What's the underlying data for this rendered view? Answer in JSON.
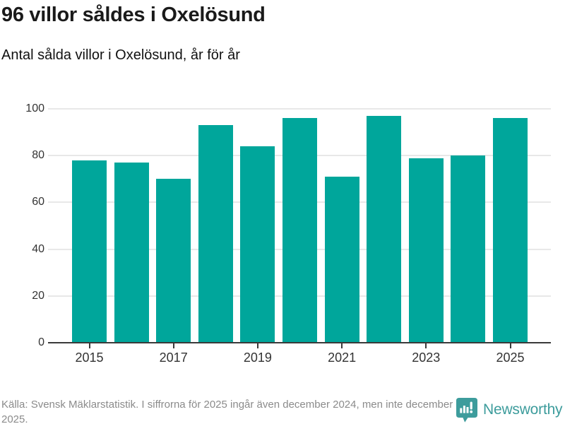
{
  "header": {
    "title": "96 villor såldes i Oxelösund",
    "subtitle": "Antal sålda villor i Oxelösund, år för år"
  },
  "chart_data": {
    "type": "bar",
    "title": "96 villor såldes i Oxelösund",
    "subtitle": "Antal sålda villor i Oxelösund, år för år",
    "categories": [
      "2015",
      "2016",
      "2017",
      "2018",
      "2019",
      "2020",
      "2021",
      "2022",
      "2023",
      "2024",
      "2025"
    ],
    "values": [
      78,
      77,
      70,
      93,
      84,
      96,
      71,
      97,
      79,
      80,
      96
    ],
    "xlabel": "",
    "ylabel": "",
    "ylim": [
      0,
      100
    ],
    "yticks": [
      0,
      20,
      40,
      60,
      80,
      100
    ],
    "xtick_labels": [
      "2015",
      "2017",
      "2019",
      "2021",
      "2023",
      "2025"
    ],
    "grid": "horizontal",
    "legend": "none",
    "bar_color": "#00a69b"
  },
  "footer": {
    "source": "Källa: Svensk Mäklarstatistik. I siffrorna för 2025 ingår även december 2024, men inte december 2025.",
    "brand": "Newsworthy"
  },
  "colors": {
    "bar": "#00a69b",
    "brand": "#3d9c9c",
    "grid": "#e8e8e8",
    "axis": "#3a3a3a",
    "title_text": "#1a1a1a",
    "footer_text": "#8b8b8b"
  }
}
